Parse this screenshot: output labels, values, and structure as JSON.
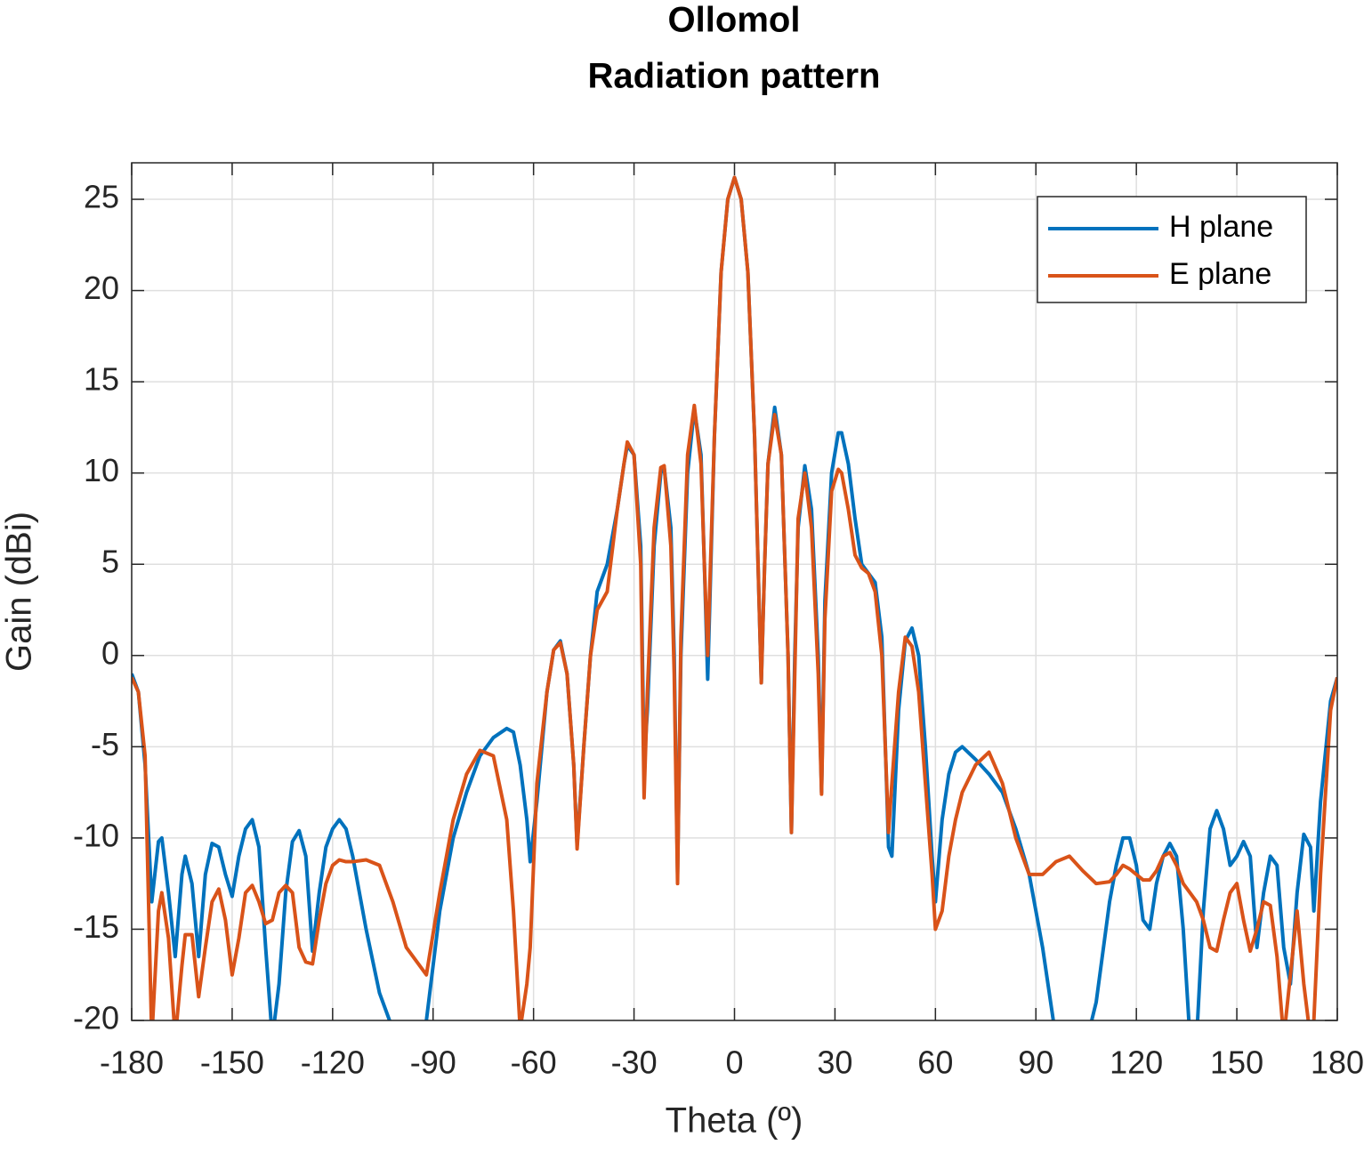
{
  "chart_data": {
    "type": "line",
    "title": [
      "Ollomol",
      "Radiation pattern"
    ],
    "xlabel": "Theta (º)",
    "ylabel": "Gain (dBi)",
    "xlim": [
      -180,
      180
    ],
    "ylim": [
      -20,
      27
    ],
    "xticks": [
      -180,
      -150,
      -120,
      -90,
      -60,
      -30,
      0,
      30,
      60,
      90,
      120,
      150,
      180
    ],
    "yticks": [
      -20,
      -15,
      -10,
      -5,
      0,
      5,
      10,
      15,
      20,
      25
    ],
    "grid": true,
    "legend_position": "northeast",
    "x": [
      -180,
      -178,
      -176,
      -174,
      -172,
      -171,
      -169,
      -167,
      -165,
      -164,
      -162,
      -160,
      -158,
      -156,
      -154,
      -152,
      -150,
      -148,
      -146,
      -144,
      -142,
      -140,
      -138,
      -136,
      -134,
      -132,
      -130,
      -128,
      -126,
      -124,
      -122,
      -120,
      -118,
      -116,
      -114,
      -110,
      -106,
      -102,
      -98,
      -92,
      -88,
      -84,
      -80,
      -76,
      -72,
      -68,
      -66,
      -64,
      -62,
      -61,
      -59,
      -56,
      -54,
      -52,
      -50,
      -48,
      -47,
      -45,
      -43,
      -41,
      -38,
      -35,
      -33,
      -32,
      -30,
      -28,
      -27,
      -26,
      -24,
      -22,
      -21,
      -19,
      -18,
      -17,
      -16,
      -14,
      -12,
      -10,
      -9,
      -8,
      -6,
      -4,
      -2,
      0,
      2,
      4,
      6,
      8,
      9,
      10,
      12,
      14,
      16,
      17,
      18,
      19,
      21,
      23,
      25,
      26,
      27,
      29,
      31,
      32,
      34,
      36,
      38,
      40,
      42,
      44,
      46,
      47,
      49,
      51,
      53,
      55,
      57,
      59,
      60,
      62,
      64,
      66,
      68,
      72,
      76,
      80,
      84,
      88,
      92,
      96,
      100,
      104,
      108,
      112,
      114,
      116,
      118,
      120,
      122,
      124,
      126,
      128,
      130,
      132,
      134,
      136,
      138,
      140,
      142,
      144,
      146,
      148,
      150,
      152,
      154,
      156,
      158,
      160,
      162,
      164,
      166,
      168,
      170,
      172,
      173,
      175,
      178,
      180
    ],
    "series": [
      {
        "name": "H plane",
        "color": "#0072bd",
        "values": [
          -1,
          -2,
          -6,
          -13.5,
          -10.2,
          -10,
          -13,
          -16.5,
          -12,
          -11,
          -12.5,
          -16.5,
          -12,
          -10.3,
          -10.5,
          -12,
          -13.2,
          -11,
          -9.5,
          -9,
          -10.5,
          -16,
          -21,
          -18,
          -13,
          -10.2,
          -9.6,
          -11,
          -16.2,
          -13,
          -10.5,
          -9.5,
          -9,
          -9.5,
          -11,
          -15,
          -18.5,
          -20.5,
          -22,
          -20,
          -14,
          -10,
          -7.5,
          -5.5,
          -4.5,
          -4,
          -4.2,
          -6,
          -9,
          -11.3,
          -8,
          -2,
          0.3,
          0.8,
          -1,
          -6,
          -10.4,
          -5,
          0,
          3.5,
          5,
          8,
          10.5,
          11.5,
          11,
          6,
          -6,
          -3,
          6,
          10,
          10.3,
          7,
          0,
          -12,
          0,
          10,
          13.5,
          11,
          5,
          -1.3,
          12,
          21,
          25,
          26.2,
          25,
          21,
          12,
          -1.5,
          5,
          10.5,
          13.6,
          11,
          0,
          -9.7,
          0,
          7,
          10.4,
          8,
          0,
          -7.5,
          3,
          10,
          12.2,
          12.2,
          10.5,
          7.5,
          5,
          4.5,
          4,
          1,
          -10.5,
          -11,
          -3,
          0.8,
          1.5,
          0,
          -5,
          -11,
          -13.5,
          -9,
          -6.5,
          -5.3,
          -5,
          -5.7,
          -6.5,
          -7.5,
          -9.5,
          -12,
          -16,
          -21,
          -24,
          -22,
          -19,
          -13.5,
          -11.5,
          -10,
          -10,
          -11.5,
          -14.5,
          -15,
          -12.5,
          -11,
          -10.3,
          -11,
          -15,
          -21,
          -21,
          -14,
          -9.5,
          -8.5,
          -9.5,
          -11.5,
          -11,
          -10.2,
          -11,
          -16,
          -13,
          -11,
          -11.5,
          -16,
          -18,
          -13,
          -9.8,
          -10.5,
          -14,
          -8,
          -2.5,
          -1.2
        ]
      },
      {
        "name": "E plane",
        "color": "#d95319",
        "values": [
          -1.2,
          -2,
          -5.5,
          -21,
          -14,
          -13,
          -15.5,
          -21,
          -17,
          -15.3,
          -15.3,
          -18.7,
          -16,
          -13.5,
          -12.8,
          -14.5,
          -17.5,
          -15.5,
          -13,
          -12.6,
          -13.5,
          -14.7,
          -14.5,
          -13,
          -12.6,
          -13,
          -16,
          -16.8,
          -16.9,
          -14.5,
          -12.5,
          -11.5,
          -11.2,
          -11.3,
          -11.3,
          -11.2,
          -11.5,
          -13.5,
          -16,
          -17.5,
          -13,
          -9,
          -6.5,
          -5.2,
          -5.5,
          -9,
          -14,
          -20.5,
          -18,
          -16,
          -7,
          -2,
          0.3,
          0.7,
          -1,
          -6,
          -10.6,
          -5,
          0,
          2.5,
          3.5,
          8,
          10.5,
          11.7,
          11,
          5,
          -7.8,
          -2,
          7,
          10.3,
          10.4,
          6,
          -1,
          -12.5,
          1,
          11,
          13.7,
          10.5,
          5,
          0,
          12,
          21,
          25,
          26.2,
          25,
          21,
          12,
          -1.5,
          5,
          10.5,
          13.2,
          11,
          0,
          -9.7,
          -1,
          7.5,
          10,
          7,
          -1,
          -7.6,
          2,
          9,
          10.2,
          10,
          8,
          5.5,
          4.8,
          4.5,
          3.5,
          0,
          -9.7,
          -7,
          -2,
          1,
          0.5,
          -2,
          -7,
          -12,
          -15,
          -14,
          -11,
          -9,
          -7.5,
          -6,
          -5.3,
          -7,
          -10,
          -12,
          -12,
          -11.3,
          -11,
          -11.8,
          -12.5,
          -12.4,
          -12,
          -11.5,
          -11.7,
          -12,
          -12.3,
          -12.3,
          -11.8,
          -11,
          -10.8,
          -11.5,
          -12.5,
          -13,
          -13.5,
          -14.5,
          -16,
          -16.2,
          -14.5,
          -13,
          -12.5,
          -14.5,
          -16.2,
          -15,
          -13.5,
          -13.7,
          -16.5,
          -21,
          -17.5,
          -14,
          -18,
          -21,
          -20,
          -12,
          -3,
          -1.2
        ]
      }
    ]
  }
}
